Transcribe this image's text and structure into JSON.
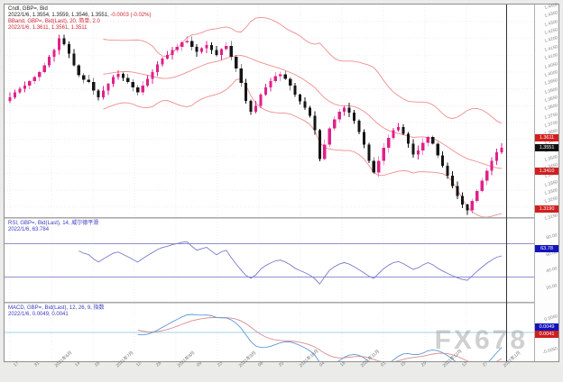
{
  "watermark": "FX678",
  "main_panel": {
    "legend": {
      "line1": "Cndl, GBP=, Bid",
      "line2": "2022/1/6, 1.3554, 1.3559, 1.3546, 1.3551,",
      "line2_change": " -0.0003 (-0.02%)",
      "line3": "BBand, GBP=, Bid(Last), 20, 简单, 2.0",
      "line4": "2022/1/6, 1.3611, 1.3561, 1.3511"
    },
    "markers": [
      {
        "label": "1.3611",
        "value": 1.3611,
        "color": "red"
      },
      {
        "label": "1.3551",
        "value": 1.3551,
        "color": "black"
      },
      {
        "label": "1.3410",
        "value": 1.341,
        "color": "red"
      },
      {
        "label": "1.3190",
        "value": 1.319,
        "color": "red"
      }
    ]
  },
  "rsi_panel": {
    "legend1": "RSI, GBP=, Bid(Last), 14, 威尔德平滑",
    "legend2": "2022/1/6, 63.784",
    "marker": {
      "label": "63.78",
      "value": 63.78,
      "color": "blue"
    },
    "levels": [
      70,
      30
    ],
    "ticks": [
      "80.00",
      "60.00",
      "40.00",
      "20.00"
    ]
  },
  "macd_panel": {
    "legend1": "MACD, GBP=, Bid(Last), 12, 26, 9, 指数",
    "legend2": "2022/1/6, 0.0049, 0.0041",
    "markers": [
      {
        "label": "0.0049",
        "value": 0.0049,
        "color": "blue"
      },
      {
        "label": "0.0041",
        "value": 0.0041,
        "color": "red"
      }
    ],
    "ticks": [
      "0.0050",
      "0.0000",
      "-0.0050"
    ],
    "axis": {
      "min": -0.009,
      "max": 0.009
    }
  },
  "chart_data": {
    "type": "candlestick",
    "symbol": "GBP= (GBP/USD)",
    "interval": "daily",
    "indicators": [
      "BBand(20, simple, 2.0)",
      "RSI(14, Wilder)",
      "MACD(12,26,9, exponential)"
    ],
    "price_axis": {
      "max": 1.44,
      "min": 1.314,
      "ticks": [
        "1.4400",
        "1.4350",
        "1.4300",
        "1.4250",
        "1.4200",
        "1.4150",
        "1.4100",
        "1.4050",
        "1.4000",
        "1.3950",
        "1.3900",
        "1.3850",
        "1.3800",
        "1.3750",
        "1.3700",
        "1.3650",
        "1.3600",
        "1.3550",
        "1.3500",
        "1.3450",
        "1.3400",
        "1.3350",
        "1.3300",
        "1.3250",
        "1.3200",
        "1.3150"
      ]
    },
    "closes": [
      1.385,
      1.388,
      1.39,
      1.392,
      1.3945,
      1.397,
      1.4,
      1.404,
      1.409,
      1.413,
      1.42,
      1.4165,
      1.411,
      1.404,
      1.398,
      1.3955,
      1.394,
      1.389,
      1.385,
      1.389,
      1.393,
      1.397,
      1.399,
      1.3965,
      1.394,
      1.391,
      1.388,
      1.392,
      1.396,
      1.4,
      1.4045,
      1.408,
      1.41,
      1.413,
      1.415,
      1.4175,
      1.4185,
      1.415,
      1.412,
      1.414,
      1.416,
      1.413,
      1.41,
      1.4135,
      1.4155,
      1.409,
      1.402,
      1.3935,
      1.383,
      1.3765,
      1.38,
      1.3865,
      1.391,
      1.3945,
      1.3975,
      1.3985,
      1.396,
      1.392,
      1.3865,
      1.3825,
      1.379,
      1.374,
      1.3655,
      1.3485,
      1.357,
      1.3665,
      1.372,
      1.3765,
      1.379,
      1.376,
      1.371,
      1.3645,
      1.357,
      1.3475,
      1.3405,
      1.3475,
      1.355,
      1.361,
      1.3655,
      1.3675,
      1.3635,
      1.3575,
      1.351,
      1.3535,
      1.358,
      1.3615,
      1.3575,
      1.3505,
      1.3445,
      1.3385,
      1.3325,
      1.3265,
      1.3215,
      1.318,
      1.3235,
      1.3295,
      1.3355,
      1.3415,
      1.3475,
      1.3525,
      1.3551
    ],
    "last_ohlc": {
      "date": "2022/1/6",
      "open": 1.3554,
      "high": 1.3559,
      "low": 1.3546,
      "close": 1.3551,
      "change": -0.0003,
      "change_pct": "-0.02%"
    },
    "bband_last": {
      "upper": 1.3611,
      "mid": 1.3561,
      "lower": 1.3511
    },
    "rsi_last": 63.784,
    "date_ticks": [
      "17",
      "31",
      "2021年6月",
      "14",
      "28",
      "2021年7月",
      "12",
      "26",
      "2021年8月",
      "09",
      "23",
      "2021年9月",
      "06",
      "20",
      "2021年10月",
      "04",
      "18",
      "2021年11月",
      "01",
      "15",
      "29",
      "2021年12月",
      "13",
      "27",
      "2022年1月"
    ],
    "colors": {
      "candle_up": "#e0218a",
      "candle_down": "#151515",
      "bband": "#ef8e8e",
      "rsi_line": "#7a7ac9",
      "rsi_levels": "#8080cc",
      "macd_line": "#5f97d6",
      "macd_signal": "#d98f8f",
      "macd_zero": "#a5d2e8",
      "grid_v": "#e7e7f1",
      "grid_h": "#f3e1e1"
    }
  }
}
